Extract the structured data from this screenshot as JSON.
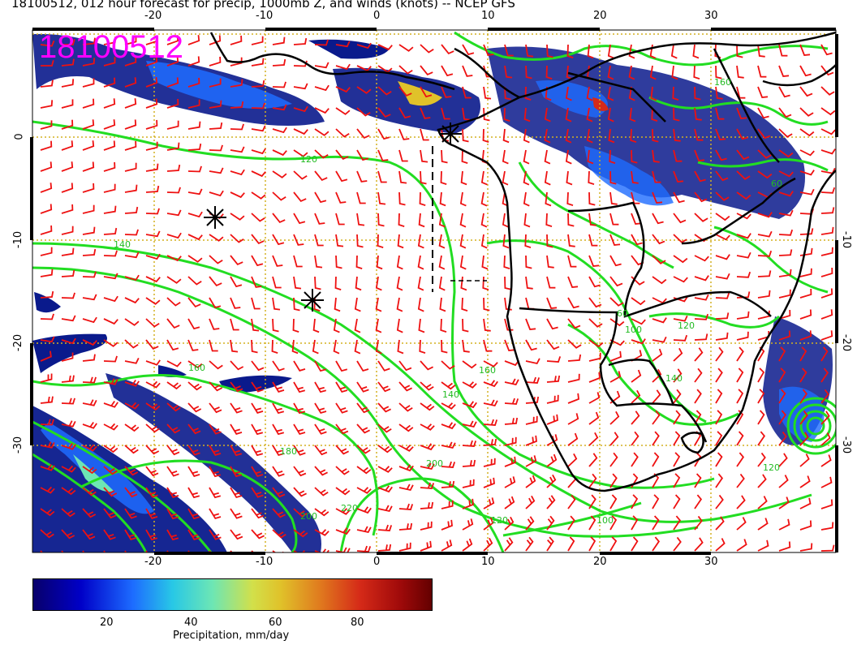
{
  "title": "18100512, 012 hour forecast for precip, 1000mb Z, and winds (knots) -- NCEP GFS",
  "stamp": "18100512",
  "map": {
    "lon_range": [
      -31,
      41
    ],
    "lat_range": [
      -40,
      10
    ],
    "top_ticks": [
      "-20",
      "-10",
      "0",
      "10",
      "20",
      "30"
    ],
    "bottom_ticks": [
      "-20",
      "-10",
      "0",
      "10",
      "20",
      "30"
    ],
    "left_ticks": [
      "0",
      "-10",
      "-20",
      "-30"
    ],
    "right_ticks": [
      "-10",
      "-20",
      "-30"
    ],
    "contour_labels": [
      "120",
      "140",
      "160",
      "180",
      "200",
      "220",
      "160",
      "140",
      "120",
      "100",
      "60",
      "60",
      "100",
      "120",
      "140",
      "160",
      "120",
      "200"
    ],
    "colors": {
      "precip_dark": "#0a1a8c",
      "precip_mid": "#1e6cff",
      "contour": "#22dd22",
      "wind_barb": "#ee1111",
      "coast": "#000000",
      "graticule": "#d4b020",
      "stamp": "#ff00ff"
    }
  },
  "colorbar": {
    "ticks": [
      "20",
      "40",
      "60",
      "80"
    ],
    "label": "Precipitation, mm/day"
  }
}
